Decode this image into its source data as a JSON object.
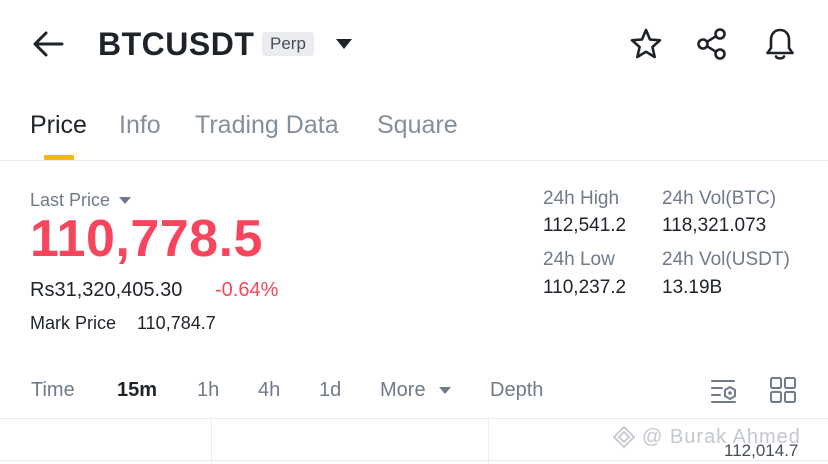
{
  "header": {
    "symbol": "BTCUSDT",
    "badge": "Perp",
    "icons": {
      "back": "arrow-left-icon",
      "dropdown": "caret-down-icon",
      "favorite": "star-icon",
      "share": "share-icon",
      "alert": "bell-icon"
    }
  },
  "tabs": [
    {
      "label": "Price",
      "active": true
    },
    {
      "label": "Info",
      "active": false
    },
    {
      "label": "Trading Data",
      "active": false
    },
    {
      "label": "Square",
      "active": false
    }
  ],
  "price": {
    "last_price_label": "Last Price",
    "last_price": "110,778.5",
    "fiat_value": "Rs31,320,405.30",
    "change_pct": "-0.64%",
    "mark_price_label": "Mark Price",
    "mark_price": "110,784.7"
  },
  "stats": {
    "high_label": "24h High",
    "high": "112,541.2",
    "low_label": "24h Low",
    "low": "110,237.2",
    "vol_btc_label": "24h Vol(BTC)",
    "vol_btc": "118,321.073",
    "vol_usdt_label": "24h Vol(USDT)",
    "vol_usdt": "13.19B"
  },
  "intervals": {
    "time": "Time",
    "m15": "15m",
    "h1": "1h",
    "h4": "4h",
    "d1": "1d",
    "more": "More",
    "depth": "Depth",
    "active": "15m"
  },
  "chart": {
    "price_axis_label": "112,014.7",
    "watermark": "@ Burak Ahmed"
  },
  "colors": {
    "accent": "#f0b90b",
    "down": "#f6465d",
    "text": "#1e2329",
    "muted": "#707a8a"
  }
}
